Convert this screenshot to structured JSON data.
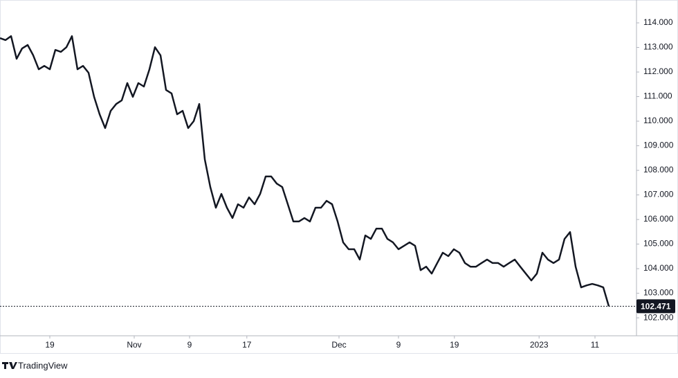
{
  "chart_data": {
    "type": "line",
    "values": [
      113.38,
      113.3,
      113.46,
      112.54,
      112.96,
      113.1,
      112.68,
      112.11,
      112.25,
      112.11,
      112.9,
      112.82,
      113.01,
      113.46,
      112.11,
      112.25,
      111.97,
      110.99,
      110.28,
      109.72,
      110.42,
      110.7,
      110.85,
      111.55,
      110.99,
      111.55,
      111.41,
      112.11,
      113.01,
      112.68,
      111.27,
      111.13,
      110.28,
      110.42,
      109.72,
      110.0,
      110.7,
      108.45,
      107.32,
      106.48,
      107.04,
      106.48,
      106.06,
      106.62,
      106.48,
      106.9,
      106.62,
      107.04,
      107.75,
      107.75,
      107.46,
      107.32,
      106.62,
      105.92,
      105.92,
      106.06,
      105.92,
      106.48,
      106.48,
      106.76,
      106.62,
      105.92,
      105.07,
      104.79,
      104.79,
      104.37,
      105.35,
      105.21,
      105.63,
      105.63,
      105.21,
      105.07,
      104.79,
      104.93,
      105.07,
      104.93,
      103.94,
      104.08,
      103.8,
      104.23,
      104.65,
      104.51,
      104.79,
      104.65,
      104.23,
      104.08,
      104.08,
      104.23,
      104.37,
      104.23,
      104.23,
      104.08,
      104.23,
      104.37,
      104.08,
      103.8,
      103.52,
      103.8,
      104.65,
      104.37,
      104.23,
      104.37,
      105.21,
      105.49,
      104.08,
      103.24,
      103.32,
      103.38,
      103.32,
      103.24,
      102.471
    ],
    "color": "#131722",
    "xlim": [
      0,
      115
    ],
    "xticks": [
      {
        "value": 9,
        "label": "19"
      },
      {
        "value": 24.25,
        "label": "Nov"
      },
      {
        "value": 34.25,
        "label": "9"
      },
      {
        "value": 44.6,
        "label": "17"
      },
      {
        "value": 61.25,
        "label": "Dec"
      },
      {
        "value": 72,
        "label": "9"
      },
      {
        "value": 82.1,
        "label": "19"
      },
      {
        "value": 97.4,
        "label": "2023"
      },
      {
        "value": 107.5,
        "label": "11"
      }
    ],
    "ylim": [
      101.27,
      114.93
    ],
    "yticks": [
      {
        "value": 102,
        "label": "102.000"
      },
      {
        "value": 103,
        "label": "103.000"
      },
      {
        "value": 104,
        "label": "104.000"
      },
      {
        "value": 105,
        "label": "105.000"
      },
      {
        "value": 106,
        "label": "106.000"
      },
      {
        "value": 107,
        "label": "107.000"
      },
      {
        "value": 108,
        "label": "108.000"
      },
      {
        "value": 109,
        "label": "109.000"
      },
      {
        "value": 110,
        "label": "110.000"
      },
      {
        "value": 111,
        "label": "111.000"
      },
      {
        "value": 112,
        "label": "112.000"
      },
      {
        "value": 113,
        "label": "113.000"
      },
      {
        "value": 114,
        "label": "114.000"
      }
    ],
    "grid": false
  },
  "footer": {
    "brand": "TradingView"
  }
}
